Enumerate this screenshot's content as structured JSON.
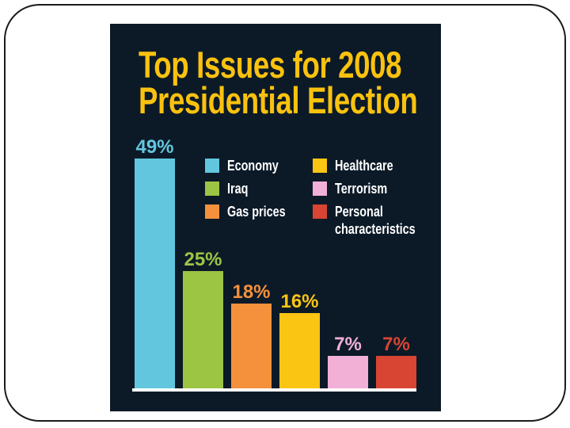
{
  "colors": {
    "page_bg": "#ffffff",
    "frame_border": "#1b1b1b",
    "panel_bg": "#0c1a28",
    "title_yellow": "#fac20e",
    "legend_text": "#ffffff",
    "baseline": "#ffffff"
  },
  "chart_data": {
    "type": "bar",
    "title": "Top Issues for 2008 Presidential Election",
    "title_lines": [
      "Top Issues for 2008",
      "Presidential Election"
    ],
    "categories": [
      "Economy",
      "Iraq",
      "Gas prices",
      "Healthcare",
      "Terrorism",
      "Personal characteristics"
    ],
    "values": [
      49,
      25,
      18,
      16,
      7,
      7
    ],
    "value_labels": [
      "49%",
      "25%",
      "18%",
      "16%",
      "7%",
      "7%"
    ],
    "series_colors": [
      "#62c7de",
      "#9dc544",
      "#f5913c",
      "#fbc513",
      "#f2b0d7",
      "#d84533"
    ],
    "unit": "percent",
    "ylim": [
      0,
      50
    ],
    "grid": false,
    "axis_baseline": true,
    "legend": {
      "position": "inside-top-right",
      "entries": [
        {
          "label": "Economy",
          "color": "#62c7de",
          "column": 1
        },
        {
          "label": "Iraq",
          "color": "#9dc544",
          "column": 1
        },
        {
          "label": "Gas prices",
          "color": "#f5913c",
          "column": 1
        },
        {
          "label": "Healthcare",
          "color": "#fbc513",
          "column": 2
        },
        {
          "label": "Terrorism",
          "color": "#f2b0d7",
          "column": 2
        },
        {
          "label": "Personal characteristics",
          "color": "#d84533",
          "column": 2
        }
      ]
    }
  }
}
